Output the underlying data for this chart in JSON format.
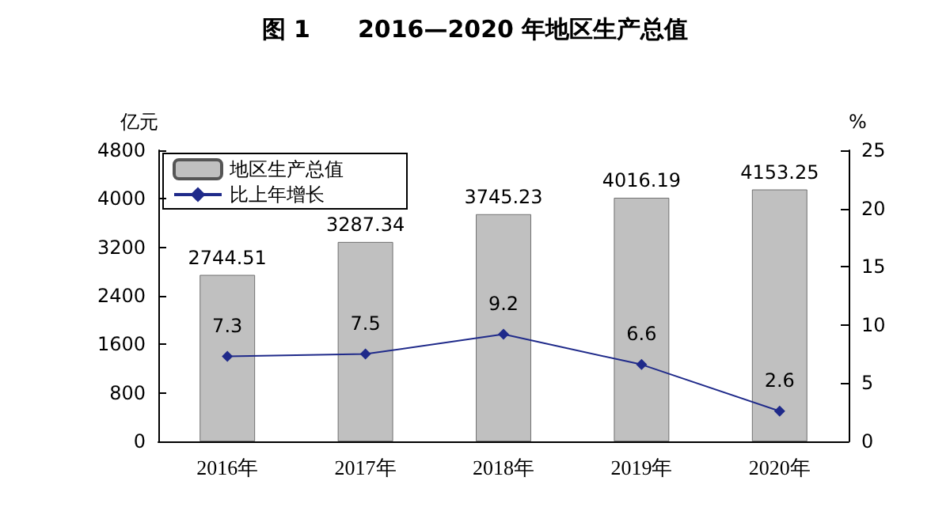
{
  "chart_data": {
    "type": "bar",
    "title": "图 1　　2016—2020 年地区生产总值",
    "ylabel": "亿元",
    "y2label": "%",
    "categories": [
      "2016年",
      "2017年",
      "2018年",
      "2019年",
      "2020年"
    ],
    "series": [
      {
        "name": "地区生产总值",
        "color": "#c0c0c0",
        "values": [
          2744.51,
          3287.34,
          3745.23,
          4016.19,
          4153.25
        ]
      },
      {
        "name": "比上年增长",
        "type": "line",
        "axis": "y2",
        "color": "#1f2a8a",
        "marker": "diamond",
        "values": [
          7.3,
          7.5,
          9.2,
          6.6,
          2.6
        ]
      }
    ],
    "ylim": [
      0,
      4800
    ],
    "yticks": [
      0,
      800,
      1600,
      2400,
      3200,
      4000,
      4800
    ],
    "y2lim": [
      0,
      25
    ],
    "y2ticks": [
      0,
      5,
      10,
      15,
      20,
      25
    ],
    "data_labels": true,
    "grid": false,
    "legend": "top left"
  }
}
